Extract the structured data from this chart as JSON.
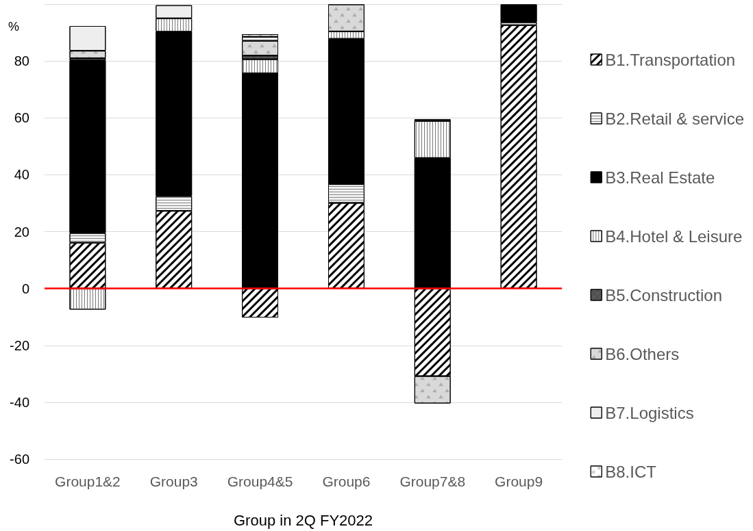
{
  "chart_data": {
    "type": "bar",
    "stacked": true,
    "xlabel": "Group in 2Q FY2022",
    "ylabel": "%",
    "categories": [
      "Group1&2",
      "Group3",
      "Group4&5",
      "Group6",
      "Group7&8",
      "Group9"
    ],
    "series": [
      {
        "name": "B1.Transportation",
        "color": "#ffffff",
        "values": [
          16.1,
          27.3,
          -10.2,
          30.1,
          -30.8,
          92.6
        ]
      },
      {
        "name": "B2.Retail & service",
        "color": "#f2f2f2",
        "values": [
          3.4,
          5.2,
          null,
          6.6,
          null,
          1.0
        ]
      },
      {
        "name": "B3.Real Estate",
        "color": "#000000",
        "values": [
          60.7,
          57.8,
          75.7,
          51.1,
          45.9,
          6.3
        ]
      },
      {
        "name": "B4.Hotel & Leisure",
        "color": "#ffffff",
        "values": [
          -7.4,
          4.7,
          4.9,
          2.6,
          13.0,
          null
        ]
      },
      {
        "name": "B5.Construction",
        "color": "#595959",
        "values": [
          0.8,
          null,
          1.3,
          null,
          0.6,
          null
        ]
      },
      {
        "name": "B6.Others",
        "color": "#d9d9d9",
        "values": [
          2.6,
          null,
          5.2,
          9.5,
          -9.6,
          null
        ]
      },
      {
        "name": "B7.Logistics",
        "color": "#eeeeee",
        "values": [
          8.7,
          4.6,
          1.4,
          null,
          null,
          null
        ]
      },
      {
        "name": "B8.ICT",
        "color": "#ffffff",
        "values": [
          null,
          null,
          0.9,
          null,
          null,
          null
        ]
      }
    ],
    "ylim": [
      -60,
      100
    ],
    "yticks": [
      -60,
      -40,
      -20,
      0,
      20,
      40,
      60,
      80,
      {
        "value": 100,
        "label": null
      }
    ],
    "ref_lines": [
      {
        "axis": "y",
        "value": 0,
        "color": "#ff0000"
      }
    ],
    "grid": "y",
    "legend": "right"
  }
}
